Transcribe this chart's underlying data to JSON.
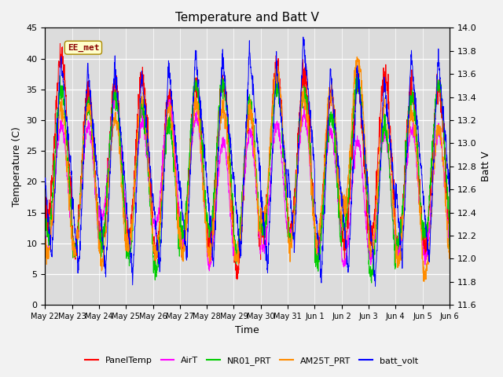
{
  "title": "Temperature and Batt V",
  "ylabel_left": "Temperature (C)",
  "ylabel_right": "Batt V",
  "xlabel": "Time",
  "ylim_left": [
    0,
    45
  ],
  "ylim_right": [
    11.6,
    14.0
  ],
  "xtick_labels": [
    "May 22",
    "May 23",
    "May 24",
    "May 25",
    "May 26",
    "May 27",
    "May 28",
    "May 29",
    "May 30",
    "May 31",
    "Jun 1",
    "Jun 2",
    "Jun 3",
    "Jun 4",
    "Jun 5",
    "Jun 6"
  ],
  "yticks_left": [
    0,
    5,
    10,
    15,
    20,
    25,
    30,
    35,
    40,
    45
  ],
  "yticks_right": [
    11.6,
    11.8,
    12.0,
    12.2,
    12.4,
    12.6,
    12.8,
    13.0,
    13.2,
    13.4,
    13.6,
    13.8,
    14.0
  ],
  "annotation_text": "EE_met",
  "annotation_color": "#8B0000",
  "annotation_bg": "#FFFFCC",
  "plot_bg": "#DCDCDC",
  "fig_bg": "#F2F2F2",
  "grid_color": "white",
  "legend_items": [
    {
      "label": "PanelTemp",
      "color": "#FF0000"
    },
    {
      "label": "AirT",
      "color": "#FF00FF"
    },
    {
      "label": "NR01_PRT",
      "color": "#00CC00"
    },
    {
      "label": "AM25T_PRT",
      "color": "#FF8C00"
    },
    {
      "label": "batt_volt",
      "color": "#0000FF"
    }
  ],
  "n_days": 15,
  "pts_per_day": 144
}
